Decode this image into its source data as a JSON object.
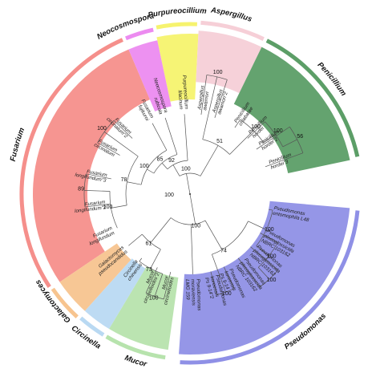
{
  "colors": {
    "fusarium": "#f58f8b",
    "neocosmospora": "#ec8bf0",
    "purpureocillium": "#f6f36e",
    "aspergillus": "#f6cfd7",
    "penicillium": "#5c9e67",
    "pseudomonas": "#8f90e6",
    "mucor": "#b7e3ad",
    "circinella": "#b9d9f2",
    "galactomyces": "#f7c48f",
    "branch": "#555555"
  },
  "clades": [
    {
      "id": "fusarium",
      "name": "Fusarium"
    },
    {
      "id": "neocosmospora",
      "name": "Neocosmospora"
    },
    {
      "id": "purpureocillium",
      "name": "Purpureocillium"
    },
    {
      "id": "aspergillus",
      "name": "Aspergillus"
    },
    {
      "id": "penicillium",
      "name": "Penicillium"
    },
    {
      "id": "pseudomonas",
      "name": "Pseudomonas"
    },
    {
      "id": "mucor",
      "name": "Mucor"
    },
    {
      "id": "circinella",
      "name": "Circinella"
    },
    {
      "id": "galactomyces",
      "name": "Galactomyces"
    }
  ],
  "leaves": [
    {
      "id": "fus-fujikuroi",
      "lines": [
        "Fusarium",
        "fujikuroi"
      ],
      "clade": "fusarium"
    },
    {
      "id": "fus-circ2",
      "lines": [
        "Fusarium",
        "circinatum\"2"
      ],
      "clade": "fusarium"
    },
    {
      "id": "fus-circ",
      "lines": [
        "Fusarium",
        "circinatum"
      ],
      "clade": "fusarium"
    },
    {
      "id": "fus-long3",
      "lines": [
        "Fusarium",
        "longifundum\"3"
      ],
      "clade": "fusarium"
    },
    {
      "id": "fus-long2",
      "lines": [
        "Fusarium",
        "longifundum\"2"
      ],
      "clade": "fusarium"
    },
    {
      "id": "fus-long",
      "lines": [
        "Fusarium",
        "longifundum"
      ],
      "clade": "fusarium"
    },
    {
      "id": "neo-rubicola",
      "lines": [
        "Neocosmospora",
        "rubicola"
      ],
      "clade": "neocosmospora"
    },
    {
      "id": "pur-lilacinum",
      "lines": [
        "Purpureocillium",
        "lilacinum"
      ],
      "clade": "purpureocillium"
    },
    {
      "id": "asp-awamori",
      "lines": [
        "Aspergillus",
        "awamori"
      ],
      "clade": "aspergillus"
    },
    {
      "id": "asp-awamori2",
      "lines": [
        "Aspergillus",
        "awamori\"2"
      ],
      "clade": "aspergillus"
    },
    {
      "id": "pen-chlabatae",
      "lines": [
        "Penicillium",
        "chlabatae"
      ],
      "clade": "penicillium"
    },
    {
      "id": "pen-hordei",
      "lines": [
        "Penicillium",
        "hordei"
      ],
      "clade": "penicillium"
    },
    {
      "id": "pen-hordei2",
      "lines": [
        "Penicillium",
        "hordei\"2"
      ],
      "clade": "penicillium"
    },
    {
      "id": "pen-hordei3",
      "lines": [
        "Penicillium",
        "hordei\"3"
      ],
      "clade": "penicillium"
    },
    {
      "id": "pse-entomophila",
      "lines": [
        "Pseudomonas",
        "entomophila L48"
      ],
      "clade": "pseudomonas"
    },
    {
      "id": "pse-plecog1",
      "lines": [
        "Pseudomonas",
        "plecoglossicida",
        "NBRC 103162"
      ],
      "clade": "pseudomonas"
    },
    {
      "id": "pse-plecog2",
      "lines": [
        "Pseudomonas",
        "plecoglossicida",
        "NBRC 103162"
      ],
      "clade": "pseudomonas"
    },
    {
      "id": "pse-plecog3",
      "lines": [
        "Pseudomonas",
        "plecoglossicida",
        "NBRC 103162"
      ],
      "clade": "pseudomonas"
    },
    {
      "id": "pse-koreensis",
      "lines": [
        "Pseudomonas",
        "koreensis",
        "Ps 9-14"
      ],
      "clade": "pseudomonas"
    },
    {
      "id": "pse-koreensis2",
      "lines": [
        "Pseudomonas",
        "koreensis",
        "Ps 9-14\"2"
      ],
      "clade": "pseudomonas"
    },
    {
      "id": "pse-moraviensis",
      "lines": [
        "Pseudomonas",
        "moraviensis",
        "LMG 159"
      ],
      "clade": "pseudomonas"
    },
    {
      "id": "muc-circ",
      "lines": [
        "Mucor",
        "circinelloides"
      ],
      "clade": "mucor"
    },
    {
      "id": "muc-circ2",
      "lines": [
        "Mucor",
        "circinelloides\"2"
      ],
      "clade": "mucor"
    },
    {
      "id": "cir-chinensis",
      "lines": [
        "Circinella",
        "chinensis"
      ],
      "clade": "circinella"
    },
    {
      "id": "gal-pseudo",
      "lines": [
        "Galactomyces",
        "pseudocandidus"
      ],
      "clade": "galactomyces"
    }
  ],
  "bootstrap": [
    {
      "id": "root",
      "value": "100"
    },
    {
      "id": "fus-outer",
      "value": "100"
    },
    {
      "id": "fus-inner",
      "value": "78"
    },
    {
      "id": "fus-circ-pair",
      "value": "100"
    },
    {
      "id": "fus-long-pair",
      "value": "100"
    },
    {
      "id": "fus-long-sub",
      "value": "89"
    },
    {
      "id": "neo-node",
      "value": "85"
    },
    {
      "id": "pur-node",
      "value": "92"
    },
    {
      "id": "top-node",
      "value": "100"
    },
    {
      "id": "asp-pair",
      "value": "100"
    },
    {
      "id": "asp-pen",
      "value": "51"
    },
    {
      "id": "pen-outer",
      "value": "100"
    },
    {
      "id": "pen-hordei-pair",
      "value": "100"
    },
    {
      "id": "pen-hordei-sub",
      "value": "56"
    },
    {
      "id": "bottom-node",
      "value": "100"
    },
    {
      "id": "pse-outer",
      "value": "100"
    },
    {
      "id": "pse-plecog",
      "value": "100"
    },
    {
      "id": "pse-plecog-sub",
      "value": "100"
    },
    {
      "id": "pse-mid",
      "value": "74"
    },
    {
      "id": "pse-kor",
      "value": "100"
    },
    {
      "id": "zygo-node",
      "value": "61"
    },
    {
      "id": "muc-circ-node",
      "value": "73"
    },
    {
      "id": "muc-pair",
      "value": "100"
    }
  ]
}
